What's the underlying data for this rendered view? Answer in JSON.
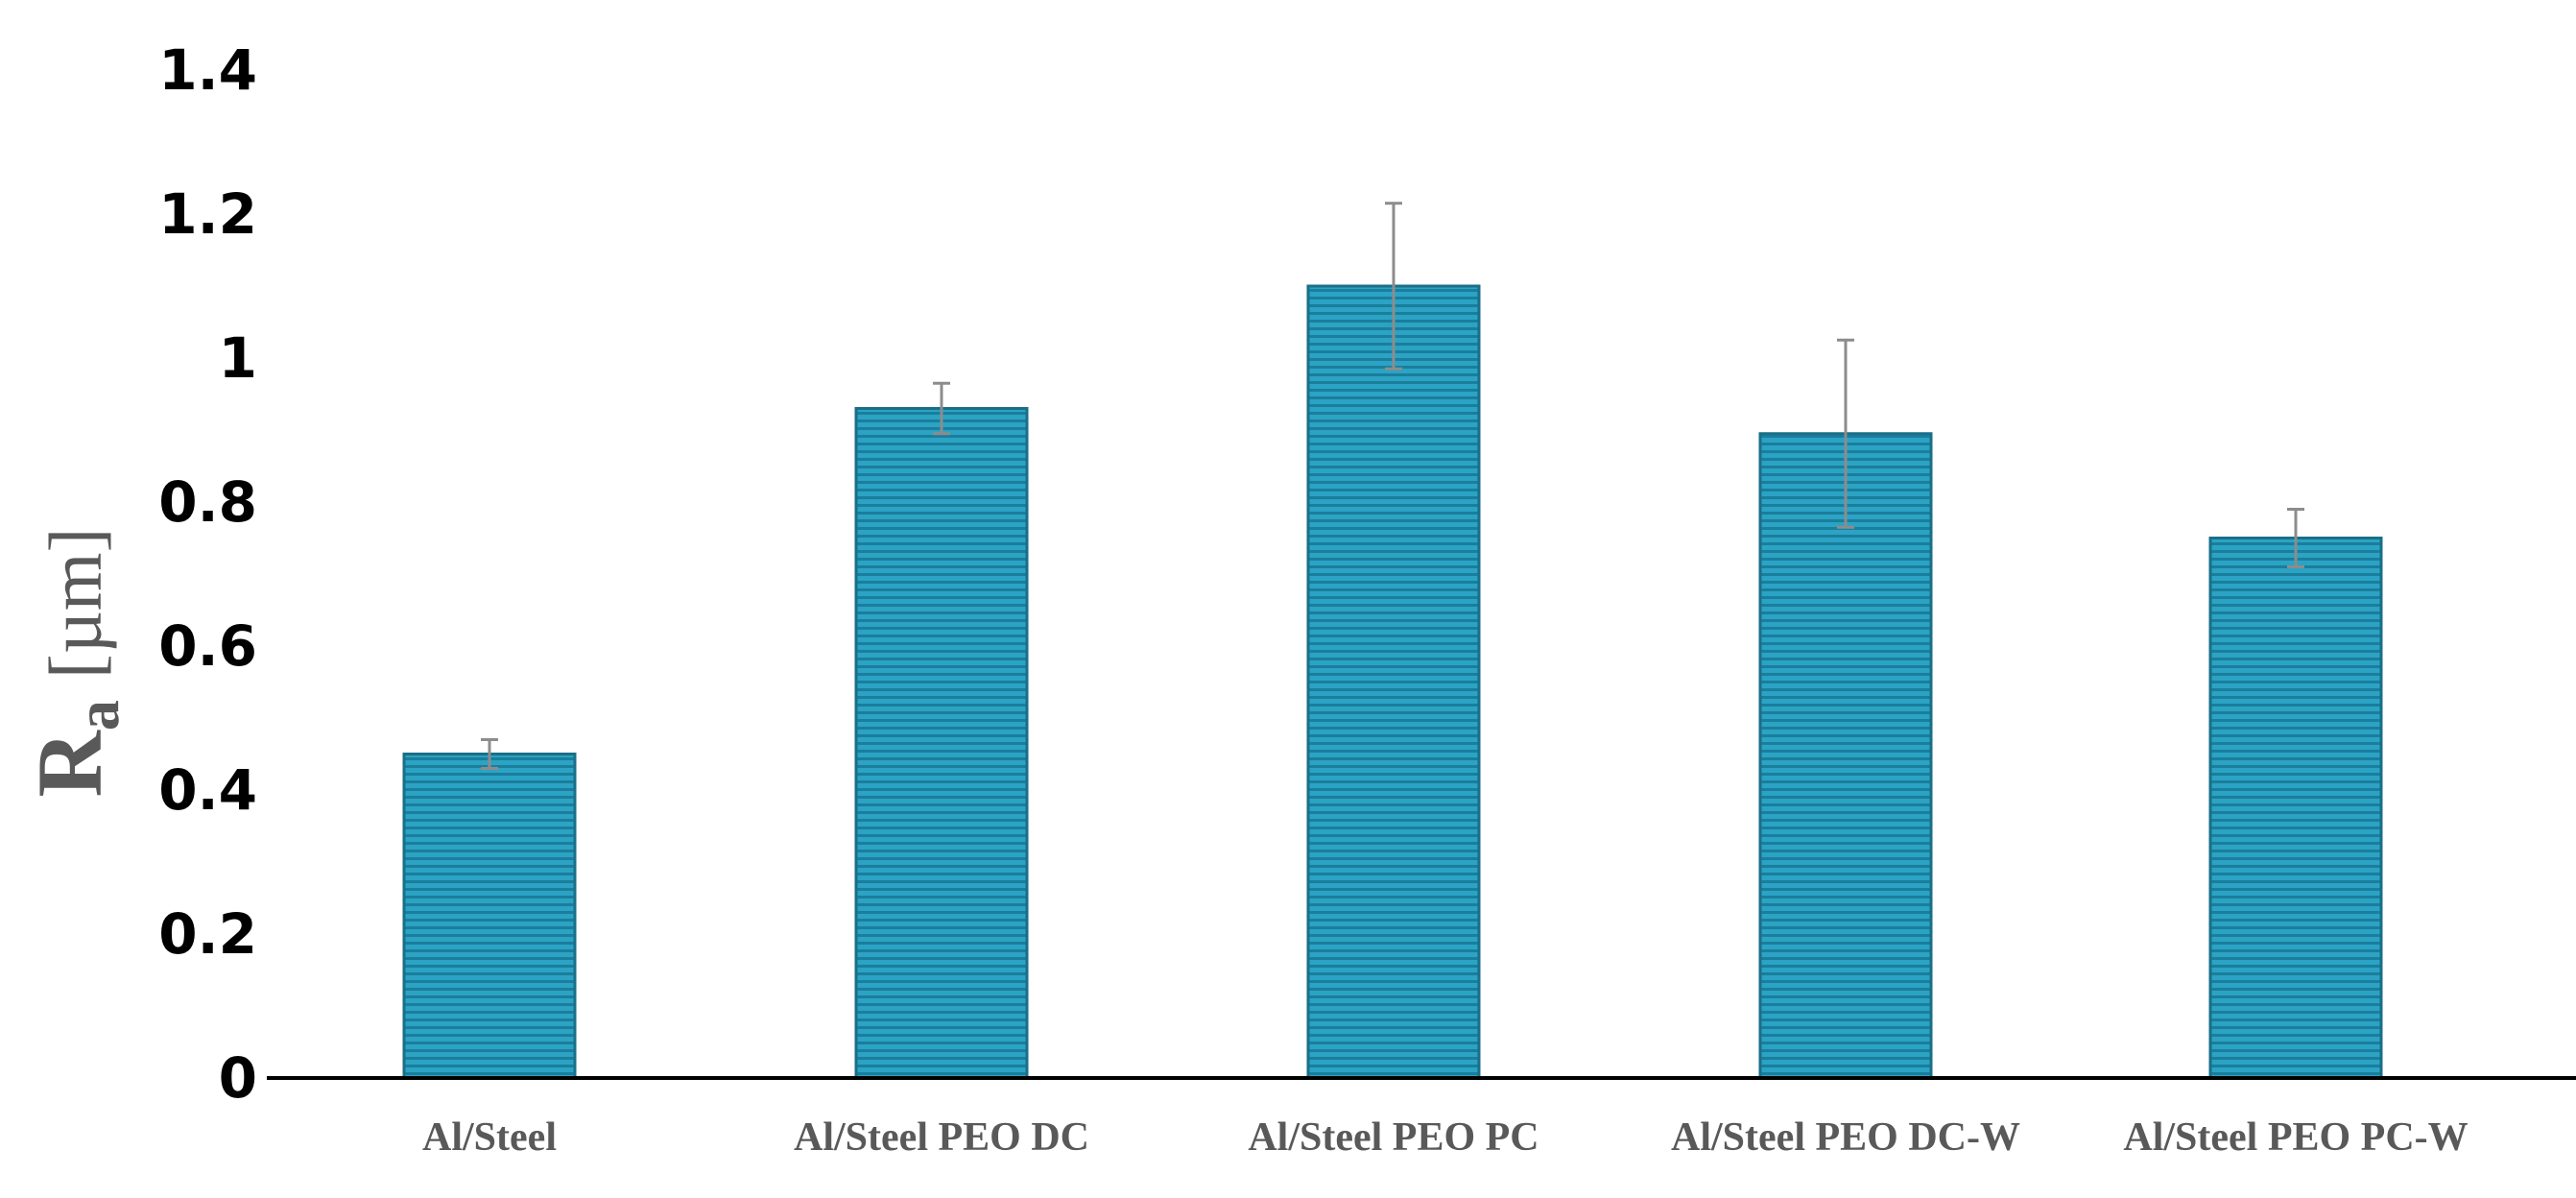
{
  "chart_data": {
    "type": "bar",
    "title": "",
    "xlabel": "",
    "ylabel": "Ra [µm]",
    "ylabel_main": "R",
    "ylabel_sub": "a",
    "ylabel_unit": "[µm]",
    "ylim": [
      0,
      1.4
    ],
    "yticks": [
      "0",
      "0.2",
      "0.4",
      "0.6",
      "0.8",
      "1",
      "1.2",
      "1.4"
    ],
    "ytick_values": [
      0,
      0.2,
      0.4,
      0.6,
      0.8,
      1.0,
      1.2,
      1.4
    ],
    "categories": [
      "Al/Steel",
      "Al/Steel PEO DC",
      "Al/Steel PEO PC",
      "Al/Steel PEO DC-W",
      "Al/Steel PEO PC-W"
    ],
    "values": [
      0.45,
      0.93,
      1.1,
      0.895,
      0.75
    ],
    "errors": [
      0.02,
      0.035,
      0.115,
      0.13,
      0.04
    ],
    "grid": false,
    "colors": {
      "bar_fill": "#2BA3C4",
      "bar_stripe": "#1B7E9C",
      "bar_edge": "#1A6F88",
      "error_bar": "#8C8C8C",
      "axis": "#000000"
    }
  }
}
